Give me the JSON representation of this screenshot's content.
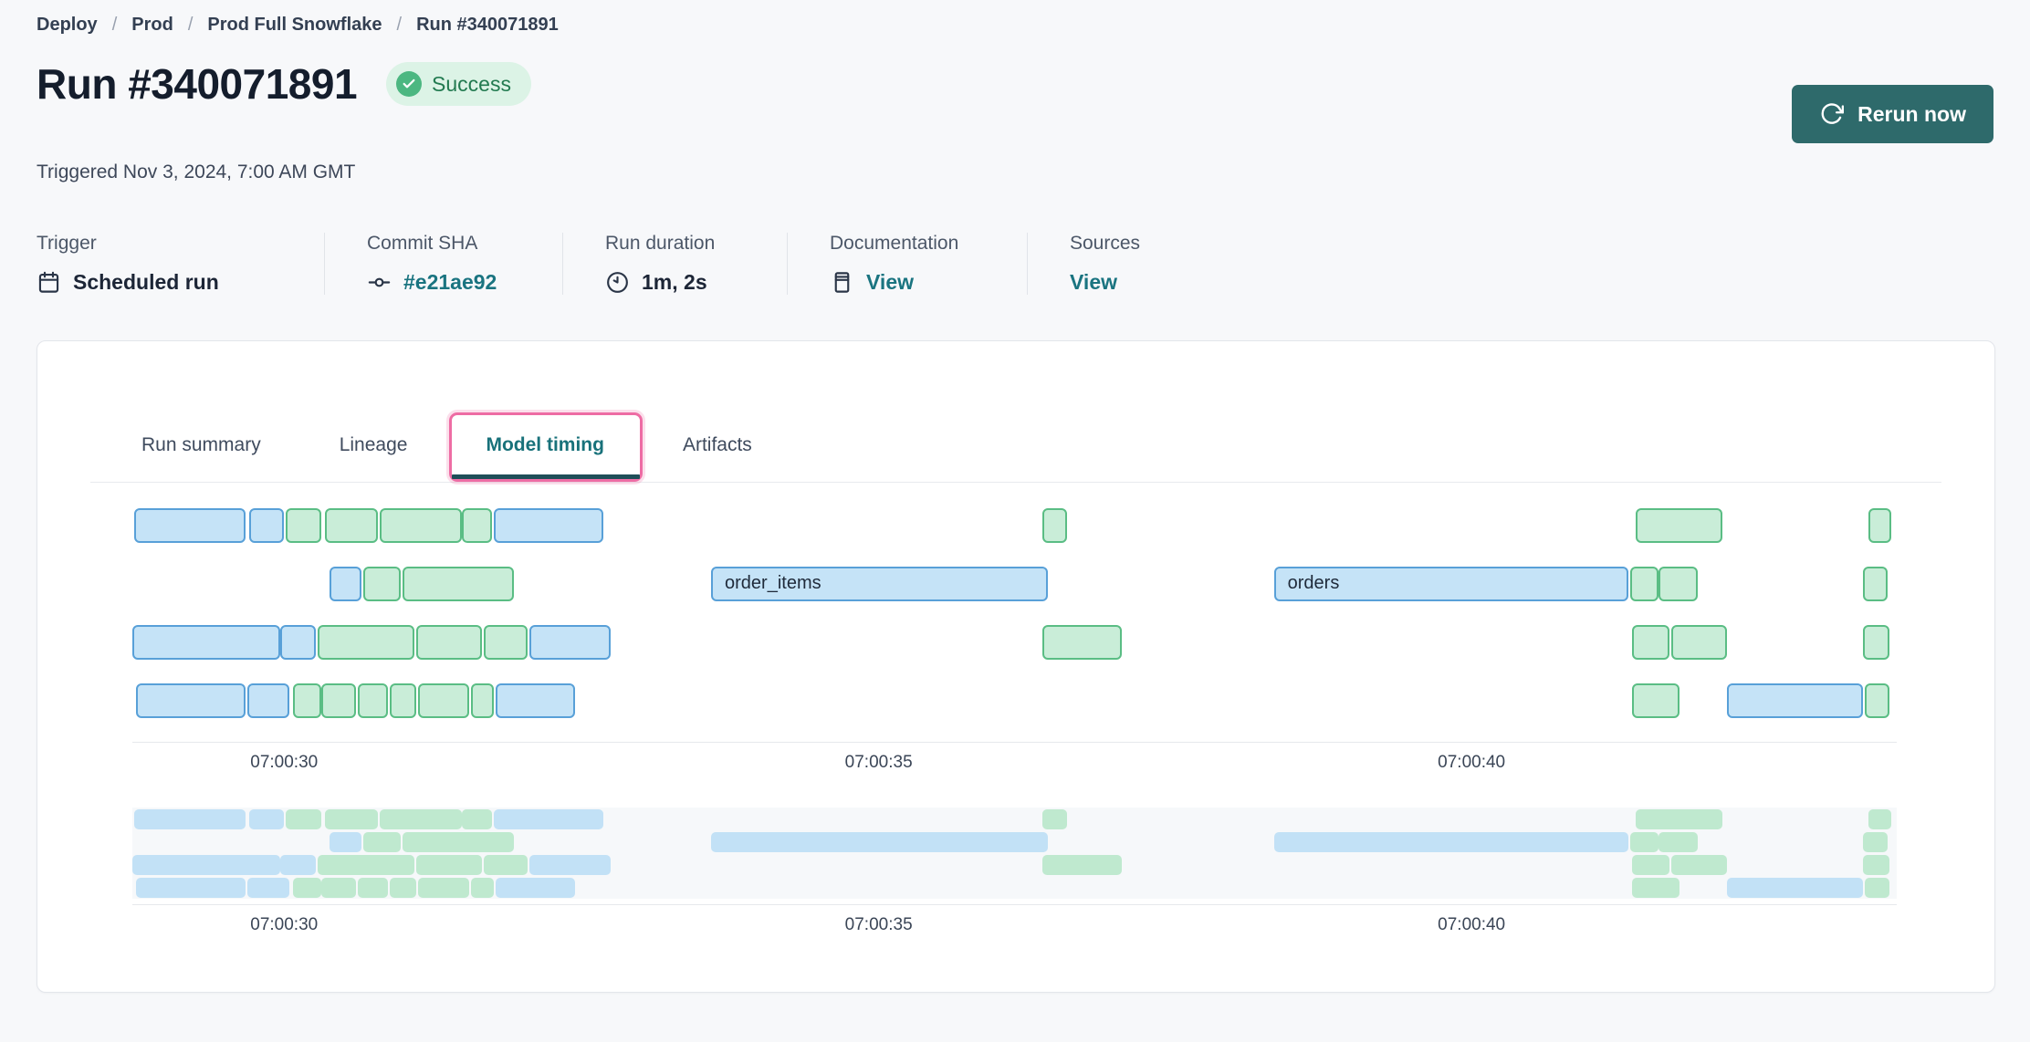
{
  "breadcrumb": {
    "separator": "/",
    "items": [
      {
        "label": "Deploy"
      },
      {
        "label": "Prod"
      },
      {
        "label": "Prod Full Snowflake"
      },
      {
        "label": "Run #340071891"
      }
    ]
  },
  "header": {
    "title": "Run #340071891",
    "status_label": "Success",
    "triggered": "Triggered Nov 3, 2024, 7:00 AM GMT",
    "rerun_label": "Rerun now"
  },
  "metadata": [
    {
      "label": "Trigger",
      "value": "Scheduled run",
      "icon": "calendar-icon",
      "is_link": false
    },
    {
      "label": "Commit SHA",
      "value": "#e21ae92",
      "icon": "commit-icon",
      "is_link": true
    },
    {
      "label": "Run duration",
      "value": "1m, 2s",
      "icon": "clock-icon",
      "is_link": false
    },
    {
      "label": "Documentation",
      "value": "View",
      "icon": "docs-icon",
      "is_link": true
    },
    {
      "label": "Sources",
      "value": "View",
      "icon": null,
      "is_link": true
    }
  ],
  "tabs": [
    {
      "label": "Run summary",
      "active": false
    },
    {
      "label": "Lineage",
      "active": false
    },
    {
      "label": "Model timing",
      "active": true
    },
    {
      "label": "Artifacts",
      "active": false
    }
  ],
  "chart_data": {
    "type": "bar",
    "variant": "gantt-model-timing",
    "title": "Model timing",
    "legend": "hidden",
    "colors": {
      "blue_fill": "#c5e3f7",
      "blue_border": "#58a0d8",
      "green_fill": "#c9edd8",
      "green_border": "#5abd84",
      "minimap_blue": "#c2e1f6",
      "minimap_green": "#bfe9cf",
      "accent_teal": "#18717a",
      "focus_pink": "#ee6ca4"
    },
    "x_ticks": [
      {
        "label": "07:00:30",
        "pos_pct": 8.6
      },
      {
        "label": "07:00:35",
        "pos_pct": 42.3
      },
      {
        "label": "07:00:40",
        "pos_pct": 75.9
      }
    ],
    "rows": [
      [
        {
          "c": "blue",
          "l": 0.1,
          "w": 6.3
        },
        {
          "c": "blue",
          "l": 6.6,
          "w": 2.0
        },
        {
          "c": "green",
          "l": 8.7,
          "w": 2.0
        },
        {
          "c": "green",
          "l": 10.9,
          "w": 3.0
        },
        {
          "c": "green",
          "l": 14.0,
          "w": 4.7
        },
        {
          "c": "green",
          "l": 18.7,
          "w": 1.7
        },
        {
          "c": "blue",
          "l": 20.5,
          "w": 6.2
        },
        {
          "c": "green",
          "l": 51.6,
          "w": 1.4
        },
        {
          "c": "green",
          "l": 85.2,
          "w": 4.9
        },
        {
          "c": "green",
          "l": 98.4,
          "w": 1.3
        }
      ],
      [
        {
          "c": "blue",
          "l": 11.2,
          "w": 1.8
        },
        {
          "c": "green",
          "l": 13.1,
          "w": 2.1
        },
        {
          "c": "green",
          "l": 15.3,
          "w": 6.3
        },
        {
          "c": "blue",
          "l": 32.8,
          "w": 19.1,
          "label": "order_items"
        },
        {
          "c": "blue",
          "l": 64.7,
          "w": 20.1,
          "label": "orders"
        },
        {
          "c": "green",
          "l": 84.9,
          "w": 1.6
        },
        {
          "c": "green",
          "l": 86.5,
          "w": 2.2
        },
        {
          "c": "green",
          "l": 98.1,
          "w": 1.4
        }
      ],
      [
        {
          "c": "blue",
          "l": 0.0,
          "w": 8.4
        },
        {
          "c": "blue",
          "l": 8.4,
          "w": 2.0
        },
        {
          "c": "green",
          "l": 10.5,
          "w": 5.5
        },
        {
          "c": "green",
          "l": 16.1,
          "w": 3.7
        },
        {
          "c": "green",
          "l": 19.9,
          "w": 2.5
        },
        {
          "c": "blue",
          "l": 22.5,
          "w": 4.6
        },
        {
          "c": "green",
          "l": 51.6,
          "w": 4.5
        },
        {
          "c": "green",
          "l": 85.0,
          "w": 2.1
        },
        {
          "c": "green",
          "l": 87.2,
          "w": 3.2
        },
        {
          "c": "green",
          "l": 98.1,
          "w": 1.5
        }
      ],
      [
        {
          "c": "blue",
          "l": 0.2,
          "w": 6.2
        },
        {
          "c": "blue",
          "l": 6.5,
          "w": 2.4
        },
        {
          "c": "green",
          "l": 9.1,
          "w": 1.6
        },
        {
          "c": "green",
          "l": 10.7,
          "w": 2.0
        },
        {
          "c": "green",
          "l": 12.8,
          "w": 1.7
        },
        {
          "c": "green",
          "l": 14.6,
          "w": 1.5
        },
        {
          "c": "green",
          "l": 16.2,
          "w": 2.9
        },
        {
          "c": "green",
          "l": 19.2,
          "w": 1.3
        },
        {
          "c": "blue",
          "l": 20.6,
          "w": 4.5
        },
        {
          "c": "green",
          "l": 85.0,
          "w": 2.7
        },
        {
          "c": "blue",
          "l": 90.4,
          "w": 7.7
        },
        {
          "c": "green",
          "l": 98.2,
          "w": 1.4
        }
      ]
    ],
    "minimap": {
      "present": true,
      "mirrors_main_rows": true,
      "x_ticks_same": true
    }
  }
}
